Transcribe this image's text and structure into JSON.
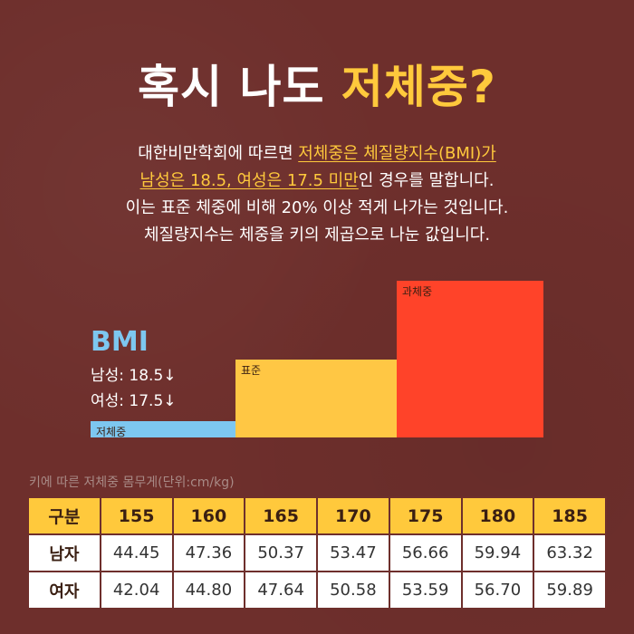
{
  "title": {
    "part1": "혹시 나도 ",
    "highlight": "저체중?"
  },
  "description": {
    "line1_a": "대한비만학회에 따르면 ",
    "line1_hl": "저체중은 체질량지수(BMI)가",
    "line2_hl": "남성은 18.5, 여성은 17.5 미만",
    "line2_b": "인 경우를 말합니다.",
    "line3": "이는 표준 체중에 비해 20% 이상 적게 나가는 것입니다.",
    "line4": "체질량지수는 체중을 키의 제곱으로 나눈 값입니다."
  },
  "bmi_panel": {
    "heading": "BMI",
    "male": "남성: 18.5↓",
    "female": "여성: 17.5↓"
  },
  "chart_data": {
    "type": "bar",
    "categories": [
      "저체중",
      "표준",
      "과체중"
    ],
    "colors": [
      "#7dc7f0",
      "#ffc744",
      "#ff4329"
    ]
  },
  "table": {
    "caption": "키에 따른 저체중 몸무게(단위:cm/kg)",
    "header": [
      "구분",
      "155",
      "160",
      "165",
      "170",
      "175",
      "180",
      "185"
    ],
    "rows": [
      {
        "label": "남자",
        "values": [
          "44.45",
          "47.36",
          "50.37",
          "53.47",
          "56.66",
          "59.94",
          "63.32"
        ]
      },
      {
        "label": "여자",
        "values": [
          "42.04",
          "44.80",
          "47.64",
          "50.58",
          "53.59",
          "56.70",
          "59.89"
        ]
      }
    ]
  }
}
